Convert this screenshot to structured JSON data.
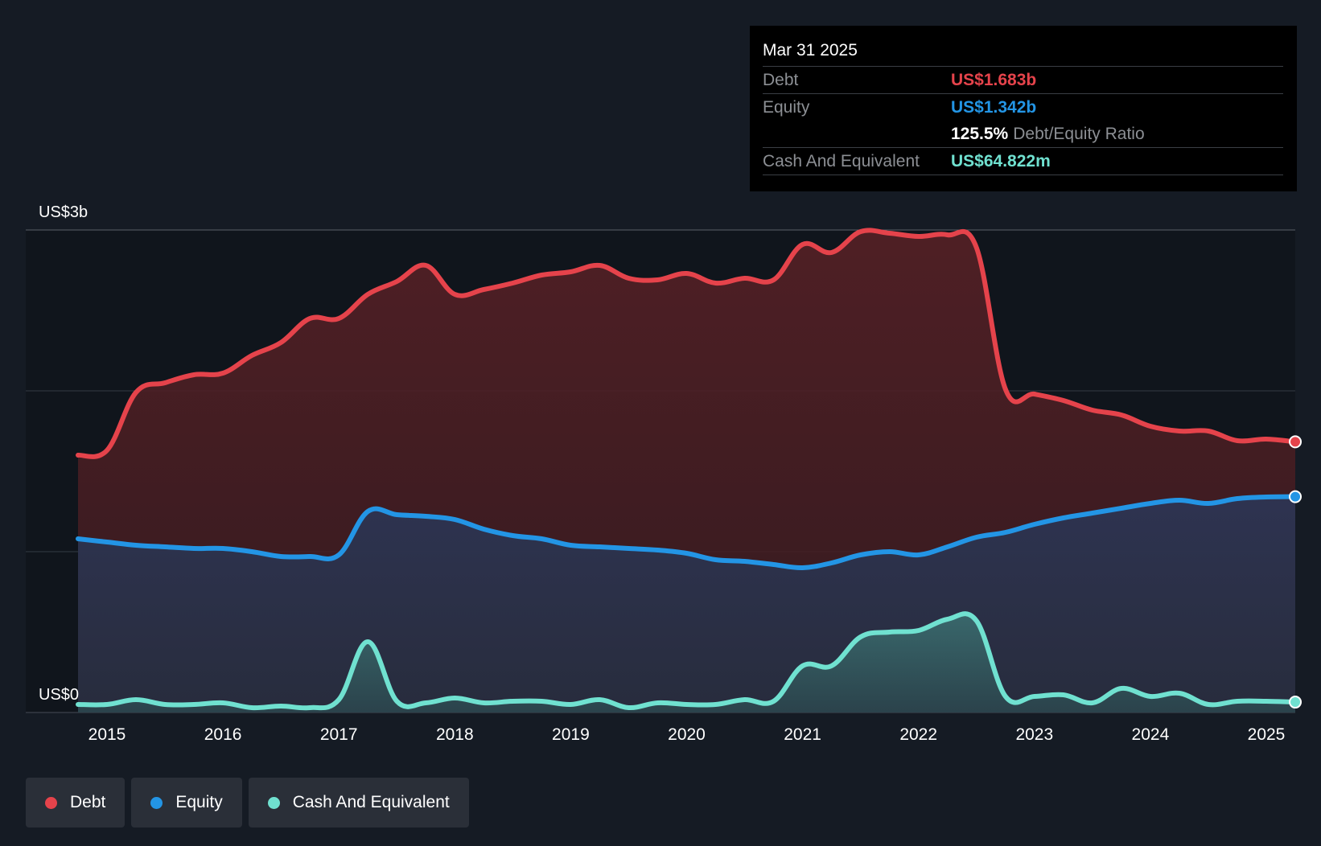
{
  "tooltip": {
    "date": "Mar 31 2025",
    "rows": [
      {
        "label": "Debt",
        "value": "US$1.683b",
        "color": "#e5434b"
      },
      {
        "label": "Equity",
        "value": "US$1.342b",
        "color": "#2395e5"
      }
    ],
    "ratio_value": "125.5%",
    "ratio_label": "Debt/Equity Ratio",
    "cash": {
      "label": "Cash And Equivalent",
      "value": "US$64.822m",
      "color": "#70e1d0"
    }
  },
  "chart_data": {
    "type": "area",
    "x_ticks": [
      2015,
      2016,
      2017,
      2018,
      2019,
      2020,
      2021,
      2022,
      2023,
      2024,
      2025
    ],
    "y_labels": {
      "max": "US$3b",
      "min": "US$0"
    },
    "ylim": [
      0,
      3
    ],
    "y_unit": "US$ billions",
    "gridlines": [
      0,
      1,
      2,
      3
    ],
    "series": [
      {
        "name": "Debt",
        "color": "#e5434b",
        "points": [
          [
            2014.75,
            1.6
          ],
          [
            2015.0,
            1.63
          ],
          [
            2015.25,
            1.99
          ],
          [
            2015.5,
            2.05
          ],
          [
            2015.75,
            2.1
          ],
          [
            2016.0,
            2.11
          ],
          [
            2016.25,
            2.22
          ],
          [
            2016.5,
            2.3
          ],
          [
            2016.75,
            2.45
          ],
          [
            2017.0,
            2.45
          ],
          [
            2017.25,
            2.6
          ],
          [
            2017.5,
            2.68
          ],
          [
            2017.75,
            2.78
          ],
          [
            2018.0,
            2.6
          ],
          [
            2018.25,
            2.63
          ],
          [
            2018.5,
            2.67
          ],
          [
            2018.75,
            2.72
          ],
          [
            2019.0,
            2.74
          ],
          [
            2019.25,
            2.78
          ],
          [
            2019.5,
            2.7
          ],
          [
            2019.75,
            2.69
          ],
          [
            2020.0,
            2.73
          ],
          [
            2020.25,
            2.67
          ],
          [
            2020.5,
            2.7
          ],
          [
            2020.75,
            2.69
          ],
          [
            2021.0,
            2.91
          ],
          [
            2021.25,
            2.86
          ],
          [
            2021.5,
            2.99
          ],
          [
            2021.75,
            2.98
          ],
          [
            2022.0,
            2.96
          ],
          [
            2022.25,
            2.97
          ],
          [
            2022.5,
            2.89
          ],
          [
            2022.75,
            2.01
          ],
          [
            2023.0,
            1.98
          ],
          [
            2023.25,
            1.94
          ],
          [
            2023.5,
            1.88
          ],
          [
            2023.75,
            1.85
          ],
          [
            2024.0,
            1.78
          ],
          [
            2024.25,
            1.75
          ],
          [
            2024.5,
            1.75
          ],
          [
            2024.75,
            1.69
          ],
          [
            2025.0,
            1.7
          ],
          [
            2025.25,
            1.683
          ]
        ]
      },
      {
        "name": "Equity",
        "color": "#2395e5",
        "points": [
          [
            2014.75,
            1.08
          ],
          [
            2015.0,
            1.06
          ],
          [
            2015.25,
            1.04
          ],
          [
            2015.5,
            1.03
          ],
          [
            2015.75,
            1.02
          ],
          [
            2016.0,
            1.02
          ],
          [
            2016.25,
            1.0
          ],
          [
            2016.5,
            0.97
          ],
          [
            2016.75,
            0.97
          ],
          [
            2017.0,
            0.98
          ],
          [
            2017.25,
            1.25
          ],
          [
            2017.5,
            1.23
          ],
          [
            2017.75,
            1.22
          ],
          [
            2018.0,
            1.2
          ],
          [
            2018.25,
            1.14
          ],
          [
            2018.5,
            1.1
          ],
          [
            2018.75,
            1.08
          ],
          [
            2019.0,
            1.04
          ],
          [
            2019.25,
            1.03
          ],
          [
            2019.5,
            1.02
          ],
          [
            2019.75,
            1.01
          ],
          [
            2020.0,
            0.99
          ],
          [
            2020.25,
            0.95
          ],
          [
            2020.5,
            0.94
          ],
          [
            2020.75,
            0.92
          ],
          [
            2021.0,
            0.9
          ],
          [
            2021.25,
            0.93
          ],
          [
            2021.5,
            0.98
          ],
          [
            2021.75,
            1.0
          ],
          [
            2022.0,
            0.98
          ],
          [
            2022.25,
            1.03
          ],
          [
            2022.5,
            1.09
          ],
          [
            2022.75,
            1.12
          ],
          [
            2023.0,
            1.17
          ],
          [
            2023.25,
            1.21
          ],
          [
            2023.5,
            1.24
          ],
          [
            2023.75,
            1.27
          ],
          [
            2024.0,
            1.3
          ],
          [
            2024.25,
            1.32
          ],
          [
            2024.5,
            1.3
          ],
          [
            2024.75,
            1.33
          ],
          [
            2025.0,
            1.34
          ],
          [
            2025.25,
            1.342
          ]
        ]
      },
      {
        "name": "Cash And Equivalent",
        "color": "#70e1d0",
        "points": [
          [
            2014.75,
            0.05
          ],
          [
            2015.0,
            0.05
          ],
          [
            2015.25,
            0.08
          ],
          [
            2015.5,
            0.05
          ],
          [
            2015.75,
            0.05
          ],
          [
            2016.0,
            0.06
          ],
          [
            2016.25,
            0.03
          ],
          [
            2016.5,
            0.04
          ],
          [
            2016.75,
            0.03
          ],
          [
            2017.0,
            0.08
          ],
          [
            2017.25,
            0.44
          ],
          [
            2017.5,
            0.07
          ],
          [
            2017.75,
            0.06
          ],
          [
            2018.0,
            0.09
          ],
          [
            2018.25,
            0.06
          ],
          [
            2018.5,
            0.07
          ],
          [
            2018.75,
            0.07
          ],
          [
            2019.0,
            0.05
          ],
          [
            2019.25,
            0.08
          ],
          [
            2019.5,
            0.03
          ],
          [
            2019.75,
            0.06
          ],
          [
            2020.0,
            0.05
          ],
          [
            2020.25,
            0.05
          ],
          [
            2020.5,
            0.08
          ],
          [
            2020.75,
            0.07
          ],
          [
            2021.0,
            0.29
          ],
          [
            2021.25,
            0.29
          ],
          [
            2021.5,
            0.47
          ],
          [
            2021.75,
            0.5
          ],
          [
            2022.0,
            0.51
          ],
          [
            2022.25,
            0.58
          ],
          [
            2022.5,
            0.57
          ],
          [
            2022.75,
            0.1
          ],
          [
            2023.0,
            0.1
          ],
          [
            2023.25,
            0.11
          ],
          [
            2023.5,
            0.06
          ],
          [
            2023.75,
            0.15
          ],
          [
            2024.0,
            0.1
          ],
          [
            2024.25,
            0.12
          ],
          [
            2024.5,
            0.05
          ],
          [
            2024.75,
            0.07
          ],
          [
            2025.0,
            0.07
          ],
          [
            2025.25,
            0.0648
          ]
        ]
      }
    ],
    "grid": true,
    "legend_position": "bottom-left"
  },
  "legend": [
    {
      "label": "Debt",
      "color": "#e5434b"
    },
    {
      "label": "Equity",
      "color": "#2395e5"
    },
    {
      "label": "Cash And Equivalent",
      "color": "#70e1d0"
    }
  ]
}
